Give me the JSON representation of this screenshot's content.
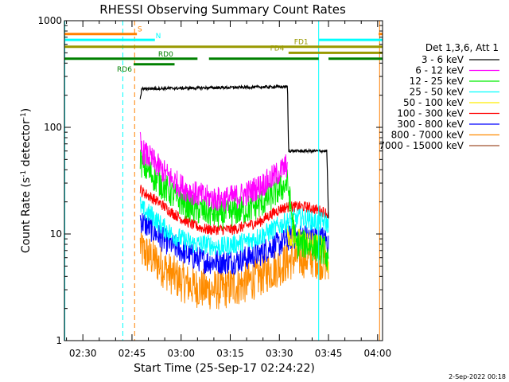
{
  "chart_data": {
    "type": "line",
    "title": "RHESSI Observing Summary Count Rates",
    "xlabel": "Start Time (25-Sep-17 02:24:22)",
    "ylabel_main": "Count Rate (s",
    "ylabel_sup1": "-1",
    "ylabel_mid": " detector",
    "ylabel_sup2": "-1",
    "ylabel_end": ")",
    "x_range_min": [
      144.37,
      241.5
    ],
    "y_scale": "log",
    "ylim": [
      1,
      1000
    ],
    "x_ticks": [
      {
        "min": 150,
        "label": "02:30"
      },
      {
        "min": 165,
        "label": "02:45"
      },
      {
        "min": 180,
        "label": "03:00"
      },
      {
        "min": 195,
        "label": "03:15"
      },
      {
        "min": 210,
        "label": "03:30"
      },
      {
        "min": 225,
        "label": "03:45"
      },
      {
        "min": 240,
        "label": "04:00"
      }
    ],
    "y_ticks": [
      {
        "value": 1,
        "label": "1"
      },
      {
        "value": 10,
        "label": "10"
      },
      {
        "value": 100,
        "label": "100"
      },
      {
        "value": 1000,
        "label": "1000"
      }
    ],
    "legend": {
      "header": "Det 1,3,6, Att 1",
      "entries": [
        {
          "label": "3 - 6 keV",
          "color": "#000000"
        },
        {
          "label": "6 - 12 keV",
          "color": "#ff00ff"
        },
        {
          "label": "12 - 25 keV",
          "color": "#00ee00"
        },
        {
          "label": "25 - 50 keV",
          "color": "#00ffff"
        },
        {
          "label": "50 - 100 keV",
          "color": "#ffee00"
        },
        {
          "label": "100 - 300 keV",
          "color": "#ff0000"
        },
        {
          "label": "300 - 800 keV",
          "color": "#0000ff"
        },
        {
          "label": "800 - 7000 keV",
          "color": "#ff8c00"
        },
        {
          "label": "7000 - 15000 keV",
          "color": "#a0522d"
        }
      ]
    },
    "flag_bars": [
      {
        "label": "S",
        "color": "#ff8000",
        "value": 750,
        "segments": [
          [
            144.37,
            166.5
          ],
          [
            240.3,
            241.5
          ]
        ]
      },
      {
        "label": "N",
        "color": "#00ffff",
        "value": 660,
        "segments": [
          [
            144.37,
            172.0
          ],
          [
            222.0,
            241.5
          ]
        ]
      },
      {
        "label": "FD1",
        "color": "#999900",
        "value": 570,
        "segments": [
          [
            144.37,
            241.5
          ]
        ]
      },
      {
        "label": "FD4",
        "color": "#999900",
        "value": 500,
        "segments": [
          [
            212.8,
            241.5
          ]
        ]
      },
      {
        "label": "RD0",
        "color": "#008000",
        "value": 440,
        "segments": [
          [
            144.37,
            185.0
          ],
          [
            188.5,
            222.0
          ],
          [
            225.0,
            241.5
          ]
        ]
      },
      {
        "label": "RD6",
        "color": "#008000",
        "value": 390,
        "segments": [
          [
            165.5,
            178.0
          ]
        ]
      }
    ],
    "vlines": [
      {
        "x": 144.5,
        "color": "#00ffff",
        "style": "solid"
      },
      {
        "x": 162.2,
        "color": "#00ffff",
        "style": "dashed"
      },
      {
        "x": 165.8,
        "color": "#ff8000",
        "style": "dashed"
      },
      {
        "x": 222.0,
        "color": "#00ffff",
        "style": "solid"
      },
      {
        "x": 240.6,
        "color": "#ff8000",
        "style": "solid"
      },
      {
        "x": 241.8,
        "color": "#ff8000",
        "style": "dashed"
      }
    ],
    "series": [
      {
        "name": "3 - 6 keV",
        "color": "#000000",
        "x": [
          167.5,
          168.0,
          210.0,
          212.5,
          212.8,
          213.0,
          222.0,
          224.0,
          224.5,
          225.0
        ],
        "y": [
          180,
          230,
          240,
          240,
          60,
          60,
          60,
          60,
          60,
          14
        ]
      },
      {
        "name": "6 - 12 keV",
        "color": "#ff00ff",
        "x": [
          167.5,
          168,
          171,
          174,
          177,
          180,
          184,
          188,
          192,
          196,
          200,
          204,
          207,
          210,
          212.5
        ],
        "y": [
          70,
          60,
          50,
          40,
          33,
          28,
          24,
          22,
          21,
          22,
          24,
          28,
          32,
          38,
          45
        ]
      },
      {
        "name": "12 - 25 keV",
        "color": "#00ee00",
        "x": [
          167.5,
          168,
          171,
          174,
          177,
          180,
          184,
          188,
          192,
          196,
          200,
          204,
          207,
          210,
          212.5,
          215,
          218,
          221,
          224,
          225
        ],
        "y": [
          55,
          45,
          36,
          29,
          24,
          20,
          17,
          16,
          15,
          16,
          17,
          19,
          22,
          26,
          30,
          8,
          8,
          7.5,
          7,
          5
        ]
      },
      {
        "name": "25 - 50 keV",
        "color": "#00ffff",
        "x": [
          167.5,
          168,
          171,
          174,
          177,
          180,
          184,
          188,
          192,
          196,
          200,
          204,
          207,
          210,
          212.5,
          215,
          218,
          221,
          224,
          225
        ],
        "y": [
          19,
          17,
          15,
          12,
          10,
          9,
          8,
          8,
          7.5,
          8,
          8.5,
          9.5,
          10.5,
          12,
          13,
          14,
          14,
          13,
          13,
          12
        ]
      },
      {
        "name": "50 - 100 keV",
        "color": "#ffee00",
        "x": [
          212.5,
          215,
          218,
          221,
          224,
          225
        ],
        "y": [
          10,
          9,
          8.5,
          8,
          7.5,
          5
        ]
      },
      {
        "name": "100 - 300 keV",
        "color": "#ff0000",
        "x": [
          167.5,
          168,
          171,
          174,
          177,
          180,
          184,
          188,
          192,
          196,
          200,
          204,
          207,
          210,
          212.5,
          215,
          218,
          221,
          224,
          225
        ],
        "y": [
          27,
          25,
          22,
          19,
          16,
          14,
          12,
          11,
          11,
          11,
          12,
          13,
          15,
          17,
          18,
          18,
          18,
          17,
          16,
          15
        ]
      },
      {
        "name": "300 - 800 keV",
        "color": "#0000ff",
        "x": [
          167.5,
          168,
          171,
          174,
          177,
          180,
          184,
          188,
          192,
          196,
          200,
          204,
          207,
          210,
          212.5,
          215,
          218,
          221,
          224,
          225
        ],
        "y": [
          14,
          13,
          11,
          9,
          8,
          7,
          6,
          5.5,
          5.5,
          5.5,
          6,
          6.5,
          7.5,
          8,
          9,
          9.5,
          9.5,
          9.5,
          9,
          8
        ]
      },
      {
        "name": "800 - 7000 keV",
        "color": "#ff8c00",
        "x": [
          167.5,
          168,
          171,
          174,
          177,
          180,
          184,
          188,
          192,
          196,
          200,
          204,
          207,
          210,
          212.5,
          215,
          218,
          221,
          224,
          225
        ],
        "y": [
          8,
          7,
          6,
          5,
          4.2,
          3.6,
          3.2,
          3.0,
          3.0,
          3.2,
          3.5,
          4,
          4.5,
          5,
          5.5,
          6,
          6,
          6,
          5.5,
          5
        ]
      }
    ]
  },
  "timestamp": "2-Sep-2022 00:18"
}
